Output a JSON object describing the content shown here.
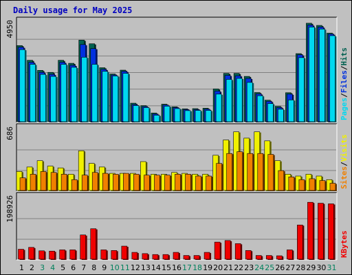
{
  "chart_data": {
    "type": "bar",
    "title": "Daily usage for May 2025",
    "days": [
      "1",
      "2",
      "3",
      "4",
      "5",
      "6",
      "7",
      "8",
      "9",
      "10",
      "11",
      "12",
      "13",
      "14",
      "15",
      "16",
      "17",
      "18",
      "19",
      "20",
      "21",
      "22",
      "23",
      "24",
      "25",
      "26",
      "27",
      "28",
      "29",
      "30",
      "31"
    ],
    "weekend_days": [
      "3",
      "4",
      "10",
      "11",
      "17",
      "18",
      "24",
      "25",
      "31"
    ],
    "panels": [
      {
        "id": "traffic",
        "y_max_label": "4950",
        "ylim": [
          0,
          4950
        ],
        "series": [
          {
            "name": "Hits",
            "color": "#006050",
            "values": [
              3780,
              3050,
              2550,
              2450,
              3050,
              2900,
              4050,
              3870,
              2680,
              2370,
              2560,
              920,
              800,
              430,
              870,
              740,
              640,
              650,
              670,
              1630,
              2400,
              2400,
              2250,
              1450,
              1070,
              760,
              1440,
              3380,
              4890,
              4780,
              4400
            ]
          },
          {
            "name": "Files",
            "color": "#0030e0",
            "values": [
              3700,
              2950,
              2450,
              2350,
              2950,
              2800,
              3830,
              3630,
              2600,
              2320,
              2500,
              850,
              750,
              380,
              830,
              700,
              600,
              600,
              620,
              1520,
              2300,
              2280,
              2150,
              1380,
              1010,
              700,
              1370,
              3320,
              4800,
              4700,
              4350
            ]
          },
          {
            "name": "Pages",
            "color": "#00d8f0",
            "values": [
              3580,
              2850,
              2350,
              2250,
              2850,
              2700,
              3200,
              2850,
              2500,
              2270,
              2400,
              800,
              700,
              320,
              770,
              650,
              550,
              560,
              560,
              1370,
              2100,
              2150,
              1950,
              1290,
              900,
              620,
              1080,
              3180,
              4700,
              4600,
              4270
            ]
          }
        ],
        "legend": [
          "Pages",
          "/",
          "Files",
          "/",
          "Hits"
        ]
      },
      {
        "id": "visits",
        "y_max_label": "686",
        "ylim": [
          0,
          686
        ],
        "series": [
          {
            "name": "Visits",
            "color": "#f0f000",
            "values": [
              210,
              260,
              330,
              270,
              250,
              180,
              440,
              300,
              260,
              190,
              190,
              190,
              320,
              180,
              180,
              200,
              190,
              180,
              180,
              390,
              560,
              650,
              580,
              650,
              550,
              330,
              180,
              160,
              180,
              160,
              120
            ]
          },
          {
            "name": "Sites",
            "color": "#f08000",
            "values": [
              140,
              180,
              210,
              200,
              180,
              120,
              170,
              200,
              190,
              180,
              190,
              180,
              170,
              170,
              170,
              180,
              180,
              160,
              160,
              300,
              410,
              430,
              410,
              410,
              400,
              220,
              150,
              120,
              130,
              110,
              80
            ]
          }
        ],
        "legend": [
          "Sites",
          "/",
          "Visits"
        ]
      },
      {
        "id": "kbytes",
        "y_max_label": "198926",
        "ylim": [
          0,
          198926
        ],
        "series": [
          {
            "name": "KBytes",
            "color": "#f00000",
            "values": [
              32000,
              38000,
              27000,
              26000,
              30000,
              30000,
              78000,
              98000,
              30000,
              28000,
              42000,
              22000,
              18000,
              15000,
              15000,
              22000,
              12000,
              12000,
              22000,
              55000,
              60000,
              50000,
              28000,
              12000,
              12000,
              11000,
              30000,
              110000,
              183000,
              180000,
              178000
            ]
          }
        ],
        "legend": [
          "KBytes"
        ]
      }
    ]
  },
  "colors": {
    "background": "#c0c0c0",
    "title": "#0000c0",
    "weekday_label": "#000000",
    "weekend_label": "#00805c",
    "gridline": "#808080",
    "legend_sep": "#000000"
  }
}
